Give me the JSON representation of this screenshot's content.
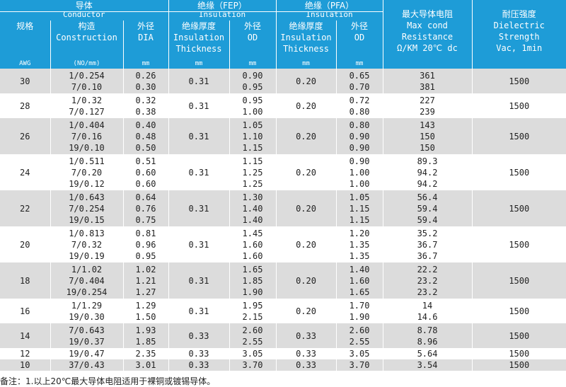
{
  "header": {
    "conductor_zh": "导体",
    "conductor_en": "Conductor",
    "fep_zh": "绝缘（FEP）",
    "fep_en": "Insulation",
    "pfa_zh": "绝缘（PFA）",
    "pfa_en": "Insulation",
    "res_zh": "最大导体电阻",
    "res_en1": "Max cond",
    "res_en2": "Resistance",
    "res_en3": "Ω/KM 20℃ dc",
    "diel_zh": "耐压强度",
    "diel_en1": "Dielectric",
    "diel_en2": "Strength",
    "diel_en3": "Vac, 1min",
    "spec_zh": "规格",
    "spec_unit": "AWG",
    "cons_zh": "构造",
    "cons_en": "Construction",
    "cons_unit": "(NO/mm)",
    "dia_zh": "外径",
    "dia_en": "DIA",
    "dia_unit": "mm",
    "thk_zh": "绝缘厚度",
    "thk_en1": "Insulation",
    "thk_en2": "Thickness",
    "thk_unit": "mm",
    "od_zh": "外径",
    "od_en": "OD",
    "od_unit": "mm",
    "thk2_zh": "绝缘厚度",
    "thk2_en1": "Insulation",
    "thk2_en2": "Thickness",
    "thk2_unit": "mm",
    "od2_zh": "外径",
    "od2_en": "OD",
    "od2_unit": "mm"
  },
  "rows": [
    {
      "awg": "30",
      "cons": [
        "1/0.254",
        "7/0.10"
      ],
      "dia": [
        "0.26",
        "0.30"
      ],
      "fep_thk": "0.31",
      "fep_od": [
        "0.90",
        "0.95"
      ],
      "pfa_thk": "0.20",
      "pfa_od": [
        "0.65",
        "0.70"
      ],
      "res": [
        "361",
        "381"
      ],
      "volt": "1500"
    },
    {
      "awg": "28",
      "cons": [
        "1/0.32",
        "7/0.127"
      ],
      "dia": [
        "0.32",
        "0.38"
      ],
      "fep_thk": "0.31",
      "fep_od": [
        "0.95",
        "1.00"
      ],
      "pfa_thk": "0.20",
      "pfa_od": [
        "0.72",
        "0.80"
      ],
      "res": [
        "227",
        "239"
      ],
      "volt": "1500"
    },
    {
      "awg": "26",
      "cons": [
        "1/0.404",
        "7/0.16",
        "19/0.10"
      ],
      "dia": [
        "0.40",
        "0.48",
        "0.50"
      ],
      "fep_thk": "0.31",
      "fep_od": [
        "1.05",
        "1.10",
        "1.15"
      ],
      "pfa_thk": "0.20",
      "pfa_od": [
        "0.80",
        "0.90",
        "0.90"
      ],
      "res": [
        "143",
        "150",
        "150"
      ],
      "volt": "1500"
    },
    {
      "awg": "24",
      "cons": [
        "1/0.511",
        "7/0.20",
        "19/0.12"
      ],
      "dia": [
        "0.51",
        "0.60",
        "0.60"
      ],
      "fep_thk": "0.31",
      "fep_od": [
        "1.15",
        "1.25",
        "1.25"
      ],
      "pfa_thk": "0.20",
      "pfa_od": [
        "0.90",
        "1.00",
        "1.00"
      ],
      "res": [
        "89.3",
        "94.2",
        "94.2"
      ],
      "volt": "1500"
    },
    {
      "awg": "22",
      "cons": [
        "1/0.643",
        "7/0.254",
        "19/0.15"
      ],
      "dia": [
        "0.64",
        "0.76",
        "0.75"
      ],
      "fep_thk": "0.31",
      "fep_od": [
        "1.30",
        "1.40",
        "1.40"
      ],
      "pfa_thk": "0.20",
      "pfa_od": [
        "1.05",
        "1.15",
        "1.15"
      ],
      "res": [
        "56.4",
        "59.4",
        "59.4"
      ],
      "volt": "1500"
    },
    {
      "awg": "20",
      "cons": [
        "1/0.813",
        "7/0.32",
        "19/0.19"
      ],
      "dia": [
        "0.81",
        "0.96",
        "0.95"
      ],
      "fep_thk": "0.31",
      "fep_od": [
        "1.45",
        "1.60",
        "1.60"
      ],
      "pfa_thk": "0.20",
      "pfa_od": [
        "1.20",
        "1.35",
        "1.35"
      ],
      "res": [
        "35.2",
        "36.7",
        "36.7"
      ],
      "volt": "1500"
    },
    {
      "awg": "18",
      "cons": [
        "1/1.02",
        "7/0.404",
        "19/0.254"
      ],
      "dia": [
        "1.02",
        "1.21",
        "1.27"
      ],
      "fep_thk": "0.31",
      "fep_od": [
        "1.65",
        "1.85",
        "1.90"
      ],
      "pfa_thk": "0.20",
      "pfa_od": [
        "1.40",
        "1.60",
        "1.65"
      ],
      "res": [
        "22.2",
        "23.2",
        "23.2"
      ],
      "volt": "1500"
    },
    {
      "awg": "16",
      "cons": [
        "1/1.29",
        "19/0.30"
      ],
      "dia": [
        "1.29",
        "1.50"
      ],
      "fep_thk": "0.31",
      "fep_od": [
        "1.95",
        "2.15"
      ],
      "pfa_thk": "0.20",
      "pfa_od": [
        "1.70",
        "1.90"
      ],
      "res": [
        "14",
        "14.6"
      ],
      "volt": "1500"
    },
    {
      "awg": "14",
      "cons": [
        "7/0.643",
        "19/0.37"
      ],
      "dia": [
        "1.93",
        "1.85"
      ],
      "fep_thk": "0.33",
      "fep_od": [
        "2.60",
        "2.55"
      ],
      "pfa_thk": "0.33",
      "pfa_od": [
        "2.60",
        "2.55"
      ],
      "res": [
        "8.78",
        "8.96"
      ],
      "volt": "1500"
    },
    {
      "awg": "12",
      "cons": [
        "19/0.47"
      ],
      "dia": [
        "2.35"
      ],
      "fep_thk": "0.33",
      "fep_od": [
        "3.05"
      ],
      "pfa_thk": "0.33",
      "pfa_od": [
        "3.05"
      ],
      "res": [
        "5.64"
      ],
      "volt": "1500"
    },
    {
      "awg": "10",
      "cons": [
        "37/0.43"
      ],
      "dia": [
        "3.01"
      ],
      "fep_thk": "0.33",
      "fep_od": [
        "3.70"
      ],
      "pfa_thk": "0.33",
      "pfa_od": [
        "3.70"
      ],
      "res": [
        "3.54"
      ],
      "volt": "1500"
    }
  ],
  "note": "备注：1.以上20℃最大导体电阻适用于裸铜或镀锡导体。",
  "colors": {
    "header_bg": "#1e9cd7",
    "stripe": "#dcdcdc"
  }
}
